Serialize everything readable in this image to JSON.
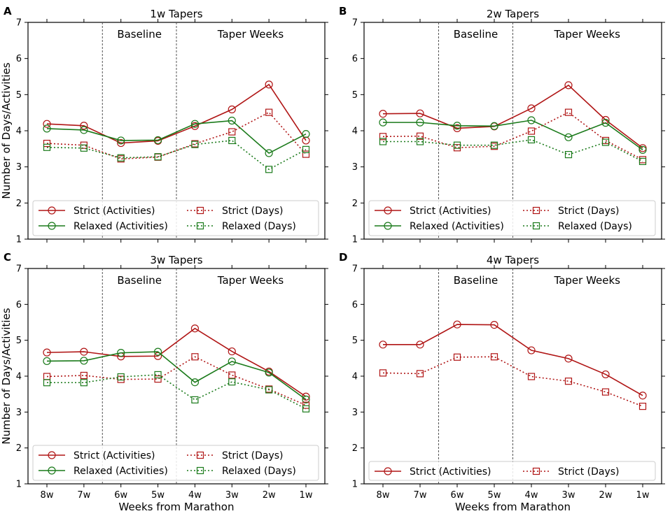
{
  "chart_data": [
    {
      "panel": "A",
      "type": "line",
      "title": "1w Tapers",
      "xlabel": "",
      "ylabel": "Number of Days/Activities",
      "categories": [
        "8w",
        "7w",
        "6w",
        "5w",
        "4w",
        "3w",
        "2w",
        "1w"
      ],
      "ylim": [
        1,
        7
      ],
      "yticks": [
        1,
        2,
        3,
        4,
        5,
        6,
        7
      ],
      "regions": [
        "Baseline",
        "Taper Weeks"
      ],
      "series": [
        {
          "name": "Strict (Activities)",
          "color": "#b01515",
          "dash": "solid",
          "marker": "circle",
          "values": [
            4.19,
            4.14,
            3.66,
            3.72,
            4.13,
            4.59,
            5.28,
            3.73
          ]
        },
        {
          "name": "Relaxed (Activities)",
          "color": "#1a7a1a",
          "dash": "solid",
          "marker": "circle",
          "values": [
            4.06,
            4.02,
            3.73,
            3.74,
            4.19,
            4.28,
            3.38,
            3.91
          ]
        },
        {
          "name": "Strict (Days)",
          "color": "#b01515",
          "dash": "dotted",
          "marker": "square",
          "values": [
            3.65,
            3.6,
            3.22,
            3.27,
            3.64,
            3.97,
            4.51,
            3.35
          ]
        },
        {
          "name": "Relaxed (Days)",
          "color": "#1a7a1a",
          "dash": "dotted",
          "marker": "square",
          "values": [
            3.54,
            3.52,
            3.25,
            3.28,
            3.62,
            3.73,
            2.93,
            3.48
          ]
        }
      ],
      "legend_order": [
        "Strict (Activities)",
        "Strict (Days)",
        "Relaxed (Activities)",
        "Relaxed (Days)"
      ]
    },
    {
      "panel": "B",
      "type": "line",
      "title": "2w Tapers",
      "xlabel": "",
      "ylabel": "",
      "categories": [
        "8w",
        "7w",
        "6w",
        "5w",
        "4w",
        "3w",
        "2w",
        "1w"
      ],
      "ylim": [
        1,
        7
      ],
      "yticks": [
        1,
        2,
        3,
        4,
        5,
        6,
        7
      ],
      "regions": [
        "Baseline",
        "Taper Weeks"
      ],
      "series": [
        {
          "name": "Strict (Activities)",
          "color": "#b01515",
          "dash": "solid",
          "marker": "circle",
          "values": [
            4.47,
            4.48,
            4.07,
            4.12,
            4.62,
            5.26,
            4.3,
            3.52
          ]
        },
        {
          "name": "Relaxed (Activities)",
          "color": "#1a7a1a",
          "dash": "solid",
          "marker": "circle",
          "values": [
            4.23,
            4.23,
            4.14,
            4.13,
            4.29,
            3.82,
            4.22,
            3.47
          ]
        },
        {
          "name": "Strict (Days)",
          "color": "#b01515",
          "dash": "dotted",
          "marker": "square",
          "values": [
            3.84,
            3.85,
            3.53,
            3.57,
            3.99,
            4.51,
            3.73,
            3.2
          ]
        },
        {
          "name": "Relaxed (Days)",
          "color": "#1a7a1a",
          "dash": "dotted",
          "marker": "square",
          "values": [
            3.7,
            3.7,
            3.6,
            3.6,
            3.75,
            3.34,
            3.68,
            3.15
          ]
        }
      ],
      "legend_order": [
        "Strict (Activities)",
        "Strict (Days)",
        "Relaxed (Activities)",
        "Relaxed (Days)"
      ]
    },
    {
      "panel": "C",
      "type": "line",
      "title": "3w Tapers",
      "xlabel": "Weeks from Marathon",
      "ylabel": "Number of Days/Activities",
      "categories": [
        "8w",
        "7w",
        "6w",
        "5w",
        "4w",
        "3w",
        "2w",
        "1w"
      ],
      "ylim": [
        1,
        7
      ],
      "yticks": [
        1,
        2,
        3,
        4,
        5,
        6,
        7
      ],
      "regions": [
        "Baseline",
        "Taper Weeks"
      ],
      "series": [
        {
          "name": "Strict (Activities)",
          "color": "#b01515",
          "dash": "solid",
          "marker": "circle",
          "values": [
            4.66,
            4.68,
            4.55,
            4.56,
            5.33,
            4.69,
            4.13,
            3.43
          ]
        },
        {
          "name": "Relaxed (Activities)",
          "color": "#1a7a1a",
          "dash": "solid",
          "marker": "circle",
          "values": [
            4.42,
            4.43,
            4.65,
            4.68,
            3.83,
            4.41,
            4.1,
            3.35
          ]
        },
        {
          "name": "Strict (Days)",
          "color": "#b01515",
          "dash": "dotted",
          "marker": "square",
          "values": [
            3.99,
            4.02,
            3.91,
            3.92,
            4.54,
            4.03,
            3.64,
            3.19
          ]
        },
        {
          "name": "Relaxed (Days)",
          "color": "#1a7a1a",
          "dash": "dotted",
          "marker": "square",
          "values": [
            3.82,
            3.82,
            3.98,
            4.04,
            3.34,
            3.84,
            3.62,
            3.09
          ]
        }
      ],
      "legend_order": [
        "Strict (Activities)",
        "Strict (Days)",
        "Relaxed (Activities)",
        "Relaxed (Days)"
      ]
    },
    {
      "panel": "D",
      "type": "line",
      "title": "4w Tapers",
      "xlabel": "Weeks from Marathon",
      "ylabel": "",
      "categories": [
        "8w",
        "7w",
        "6w",
        "5w",
        "4w",
        "3w",
        "2w",
        "1w"
      ],
      "ylim": [
        1,
        7
      ],
      "yticks": [
        1,
        2,
        3,
        4,
        5,
        6,
        7
      ],
      "regions": [
        "Baseline",
        "Taper Weeks"
      ],
      "series": [
        {
          "name": "Strict (Activities)",
          "color": "#b01515",
          "dash": "solid",
          "marker": "circle",
          "values": [
            4.88,
            4.88,
            5.44,
            5.43,
            4.72,
            4.49,
            4.05,
            3.46
          ]
        },
        {
          "name": "Strict (Days)",
          "color": "#b01515",
          "dash": "dotted",
          "marker": "square",
          "values": [
            4.09,
            4.07,
            4.53,
            4.54,
            3.99,
            3.86,
            3.56,
            3.16
          ]
        }
      ],
      "legend_order": [
        "Strict (Activities)",
        "Strict (Days)"
      ]
    }
  ]
}
